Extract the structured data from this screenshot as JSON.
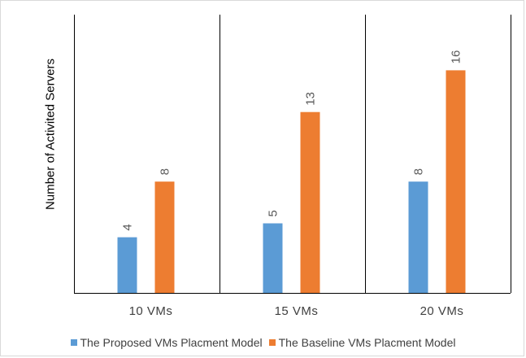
{
  "chart_data": {
    "type": "bar",
    "categories": [
      "10  VMs",
      "15  VMs",
      "20  VMs"
    ],
    "series": [
      {
        "name": "The Proposed VMs Placment Model",
        "values": [
          4,
          5,
          8
        ],
        "color": "#5b9bd5"
      },
      {
        "name": "The Baseline VMs Placment Model",
        "values": [
          8,
          13,
          16
        ],
        "color": "#ed7d31"
      }
    ],
    "title": "",
    "xlabel": "",
    "ylabel": "Number of Activited Servers",
    "ylim": [
      0,
      20
    ],
    "grid": false,
    "legend_position": "bottom",
    "data_labels": true,
    "data_label_rotation": "vertical"
  }
}
